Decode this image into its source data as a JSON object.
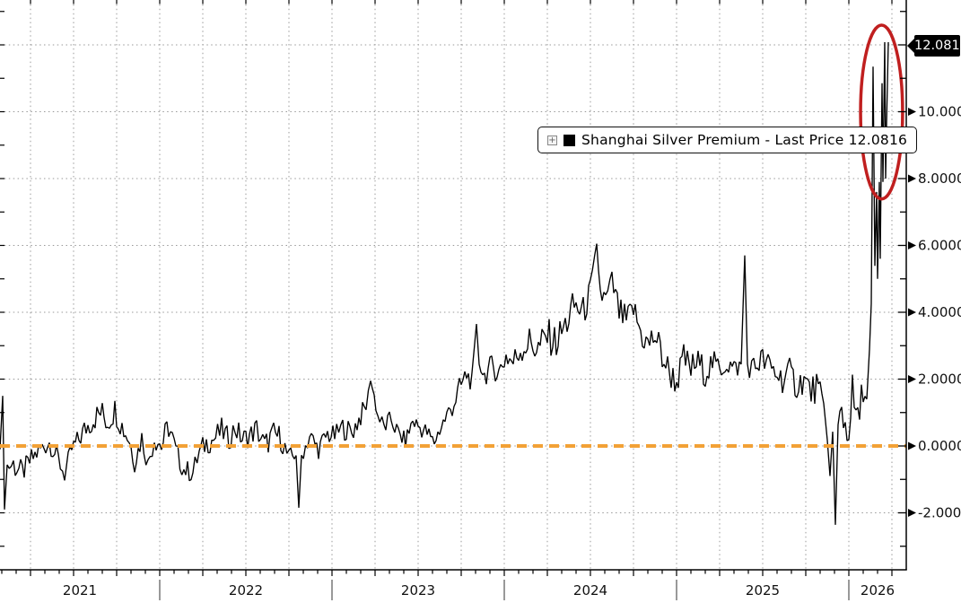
{
  "colors": {
    "background": "#ffffff",
    "series_line": "#000000",
    "zero_line": "#f2a136",
    "annotation_ellipse": "#c01f1f",
    "grid": "#999999",
    "axis": "#000000",
    "badge_bg": "#000000",
    "badge_text": "#ffffff"
  },
  "legend": {
    "expand_icon": "squared-plus-icon",
    "expand_glyph": "+",
    "marker_color": "#000000",
    "label": "Shanghai Silver Premium - Last Price 12.0816"
  },
  "y_axis": {
    "badge": "12.0816",
    "major_tick_labels": [
      "10.0000",
      "8.0000",
      "6.0000",
      "4.0000",
      "2.0000",
      "0.0000",
      "-2.0000"
    ],
    "major_tick_values": [
      10,
      8,
      6,
      4,
      2,
      0,
      -2
    ],
    "minor_step": 1,
    "arrow_glyph": "right-triangle-marker"
  },
  "x_axis": {
    "year_labels": [
      "2021",
      "2022",
      "2023",
      "2024",
      "2025",
      "2026"
    ],
    "year_values": [
      2021,
      2022,
      2023,
      2024,
      2025,
      2026
    ]
  },
  "chart_data": {
    "type": "line",
    "title": "Shanghai Silver Premium",
    "legend_label": "Shanghai Silver Premium - Last Price 12.0816",
    "last_price": 12.0816,
    "ylim": [
      -3.7,
      13.34
    ],
    "x_range_years": [
      2021.07,
      2026.33
    ],
    "grid": {
      "horizontal_step": 2,
      "vertical_step_years": 0.25,
      "style": "dotted"
    },
    "zero_line_value": 0,
    "annotation": {
      "type": "ellipse",
      "center_t": 2026.19,
      "center_value": 9.99,
      "radius_t": 0.122,
      "radius_value": 2.6
    },
    "series": [
      {
        "name": "Shanghai Silver Premium",
        "point_format": [
          "decimal_year",
          "value",
          "local_volatility"
        ],
        "points": [
          [
            2021.073,
            0.3,
            0.4
          ],
          [
            2021.0885,
            1.5,
            0
          ],
          [
            2021.099,
            -1.9,
            0
          ],
          [
            2021.1146,
            -0.6,
            0.3
          ],
          [
            2021.151,
            -0.55,
            0.45
          ],
          [
            2021.2031,
            -0.8,
            0.35
          ],
          [
            2021.2552,
            -0.4,
            0.35
          ],
          [
            2021.3073,
            -0.1,
            0.35
          ],
          [
            2021.3594,
            0.1,
            0.3
          ],
          [
            2021.4115,
            -0.4,
            0.35
          ],
          [
            2021.4479,
            -0.85,
            0.3
          ],
          [
            2021.4896,
            -0.1,
            0.3
          ],
          [
            2021.5313,
            0.2,
            0.35
          ],
          [
            2021.5729,
            0.55,
            0.4
          ],
          [
            2021.6146,
            0.8,
            0.4
          ],
          [
            2021.6563,
            1.0,
            0.45
          ],
          [
            2021.6979,
            0.75,
            0.5
          ],
          [
            2021.7396,
            1.1,
            0.4
          ],
          [
            2021.7813,
            0.6,
            0.45
          ],
          [
            2021.8229,
            0.2,
            0.4
          ],
          [
            2021.8542,
            -0.5,
            0.3
          ],
          [
            2021.8958,
            0.25,
            0.35
          ],
          [
            2021.9323,
            -0.55,
            0.3
          ],
          [
            2021.9688,
            0.3,
            0.45
          ],
          [
            2022.0104,
            0.0,
            0.4
          ],
          [
            2022.0521,
            0.6,
            0.45
          ],
          [
            2022.0938,
            -0.2,
            0.4
          ],
          [
            2022.1406,
            -0.7,
            0.3
          ],
          [
            2022.1927,
            -0.8,
            0.35
          ],
          [
            2022.2292,
            -0.2,
            0.35
          ],
          [
            2022.2708,
            0.1,
            0.35
          ],
          [
            2022.3125,
            0.2,
            0.4
          ],
          [
            2022.3594,
            0.45,
            0.4
          ],
          [
            2022.401,
            0.2,
            0.35
          ],
          [
            2022.4375,
            0.55,
            0.4
          ],
          [
            2022.4792,
            0.2,
            0.35
          ],
          [
            2022.5208,
            0.3,
            0.35
          ],
          [
            2022.5625,
            0.5,
            0.4
          ],
          [
            2022.6094,
            0.0,
            0.4
          ],
          [
            2022.6615,
            0.35,
            0.4
          ],
          [
            2022.7031,
            0.25,
            0.4
          ],
          [
            2022.75,
            -0.4,
            0.35
          ],
          [
            2022.7917,
            -0.2,
            0.25
          ],
          [
            2022.8073,
            -1.85,
            0
          ],
          [
            2022.8229,
            -0.3,
            0.25
          ],
          [
            2022.8698,
            0.3,
            0.35
          ],
          [
            2022.9219,
            -0.1,
            0.3
          ],
          [
            2022.974,
            0.35,
            0.35
          ],
          [
            2023.0156,
            0.3,
            0.3
          ],
          [
            2023.0625,
            0.55,
            0.35
          ],
          [
            2023.1146,
            0.4,
            0.35
          ],
          [
            2023.1563,
            0.8,
            0.35
          ],
          [
            2023.1979,
            1.2,
            0.3
          ],
          [
            2023.224,
            1.95,
            0
          ],
          [
            2023.2448,
            1.5,
            0.2
          ],
          [
            2023.2656,
            0.9,
            0.25
          ],
          [
            2023.3021,
            0.55,
            0.3
          ],
          [
            2023.3438,
            0.8,
            0.3
          ],
          [
            2023.3854,
            0.35,
            0.3
          ],
          [
            2023.4271,
            0.15,
            0.25
          ],
          [
            2023.4688,
            0.75,
            0.3
          ],
          [
            2023.5104,
            0.55,
            0.3
          ],
          [
            2023.5521,
            0.4,
            0.3
          ],
          [
            2023.5938,
            0.1,
            0.2
          ],
          [
            2023.625,
            0.5,
            0.3
          ],
          [
            2023.6667,
            0.9,
            0.35
          ],
          [
            2023.7083,
            1.3,
            0.4
          ],
          [
            2023.75,
            1.8,
            0.4
          ],
          [
            2023.7813,
            2.15,
            0.35
          ],
          [
            2023.8125,
            1.9,
            0.3
          ],
          [
            2023.8385,
            3.65,
            0
          ],
          [
            2023.8542,
            2.5,
            0.2
          ],
          [
            2023.8854,
            2.1,
            0.35
          ],
          [
            2023.9271,
            2.4,
            0.35
          ],
          [
            2023.9688,
            2.2,
            0.4
          ],
          [
            2024.0104,
            2.7,
            0.45
          ],
          [
            2024.0521,
            2.5,
            0.45
          ],
          [
            2024.0938,
            2.9,
            0.5
          ],
          [
            2024.1458,
            3.1,
            0.55
          ],
          [
            2024.1979,
            2.9,
            0.55
          ],
          [
            2024.25,
            3.3,
            0.55
          ],
          [
            2024.3021,
            3.1,
            0.55
          ],
          [
            2024.3542,
            3.6,
            0.55
          ],
          [
            2024.4063,
            4.2,
            0.55
          ],
          [
            2024.4583,
            4.0,
            0.5
          ],
          [
            2024.5,
            4.6,
            0.45
          ],
          [
            2024.5365,
            6.05,
            0
          ],
          [
            2024.5573,
            4.6,
            0.4
          ],
          [
            2024.5885,
            4.3,
            0.5
          ],
          [
            2024.625,
            4.9,
            0.4
          ],
          [
            2024.6667,
            4.0,
            0.5
          ],
          [
            2024.7083,
            3.7,
            0.5
          ],
          [
            2024.75,
            4.1,
            0.45
          ],
          [
            2024.7917,
            3.4,
            0.5
          ],
          [
            2024.8333,
            3.0,
            0.55
          ],
          [
            2024.875,
            3.3,
            0.5
          ],
          [
            2024.9167,
            2.7,
            0.55
          ],
          [
            2024.9583,
            2.2,
            0.5
          ],
          [
            2025.0,
            1.9,
            0.45
          ],
          [
            2025.0417,
            2.6,
            0.5
          ],
          [
            2025.0833,
            2.3,
            0.5
          ],
          [
            2025.125,
            2.5,
            0.45
          ],
          [
            2025.1667,
            2.2,
            0.45
          ],
          [
            2025.2083,
            2.5,
            0.4
          ],
          [
            2025.25,
            2.3,
            0.4
          ],
          [
            2025.2917,
            2.5,
            0.4
          ],
          [
            2025.3333,
            2.3,
            0.35
          ],
          [
            2025.375,
            2.4,
            0.3
          ],
          [
            2025.3958,
            5.7,
            0
          ],
          [
            2025.4115,
            2.4,
            0.3
          ],
          [
            2025.4479,
            2.3,
            0.45
          ],
          [
            2025.4896,
            2.6,
            0.45
          ],
          [
            2025.5313,
            2.4,
            0.45
          ],
          [
            2025.5729,
            2.2,
            0.45
          ],
          [
            2025.6146,
            2.0,
            0.45
          ],
          [
            2025.6563,
            2.2,
            0.45
          ],
          [
            2025.6979,
            1.8,
            0.45
          ],
          [
            2025.7396,
            2.0,
            0.45
          ],
          [
            2025.7813,
            1.6,
            0.5
          ],
          [
            2025.8125,
            1.8,
            0.5
          ],
          [
            2025.8438,
            1.2,
            0.55
          ],
          [
            2025.875,
            0.6,
            0.5
          ],
          [
            2025.8906,
            -0.9,
            0
          ],
          [
            2025.9063,
            0.4,
            0.25
          ],
          [
            2025.9219,
            -2.36,
            0
          ],
          [
            2025.9375,
            0.5,
            0.35
          ],
          [
            2025.9583,
            1.2,
            0.7
          ],
          [
            2025.9896,
            0.3,
            0.7
          ],
          [
            2026.0208,
            1.5,
            0.7
          ],
          [
            2026.0521,
            0.6,
            0.65
          ],
          [
            2026.0833,
            1.8,
            0.5
          ],
          [
            2026.1042,
            1.3,
            0.3
          ],
          [
            2026.1198,
            2.8,
            0.2
          ],
          [
            2026.1302,
            4.2,
            0.1
          ],
          [
            2026.1406,
            11.35,
            0
          ],
          [
            2026.151,
            5.3,
            0.15
          ],
          [
            2026.1615,
            7.6,
            0
          ],
          [
            2026.1667,
            5.0,
            0
          ],
          [
            2026.1771,
            7.9,
            0
          ],
          [
            2026.1823,
            5.6,
            0
          ],
          [
            2026.1927,
            10.85,
            0
          ],
          [
            2026.1979,
            7.9,
            0
          ],
          [
            2026.2083,
            12.0816,
            0
          ],
          [
            2026.2135,
            8.0,
            0
          ],
          [
            2026.2188,
            9.6,
            0
          ],
          [
            2026.2292,
            12.0816,
            0
          ]
        ]
      }
    ]
  }
}
